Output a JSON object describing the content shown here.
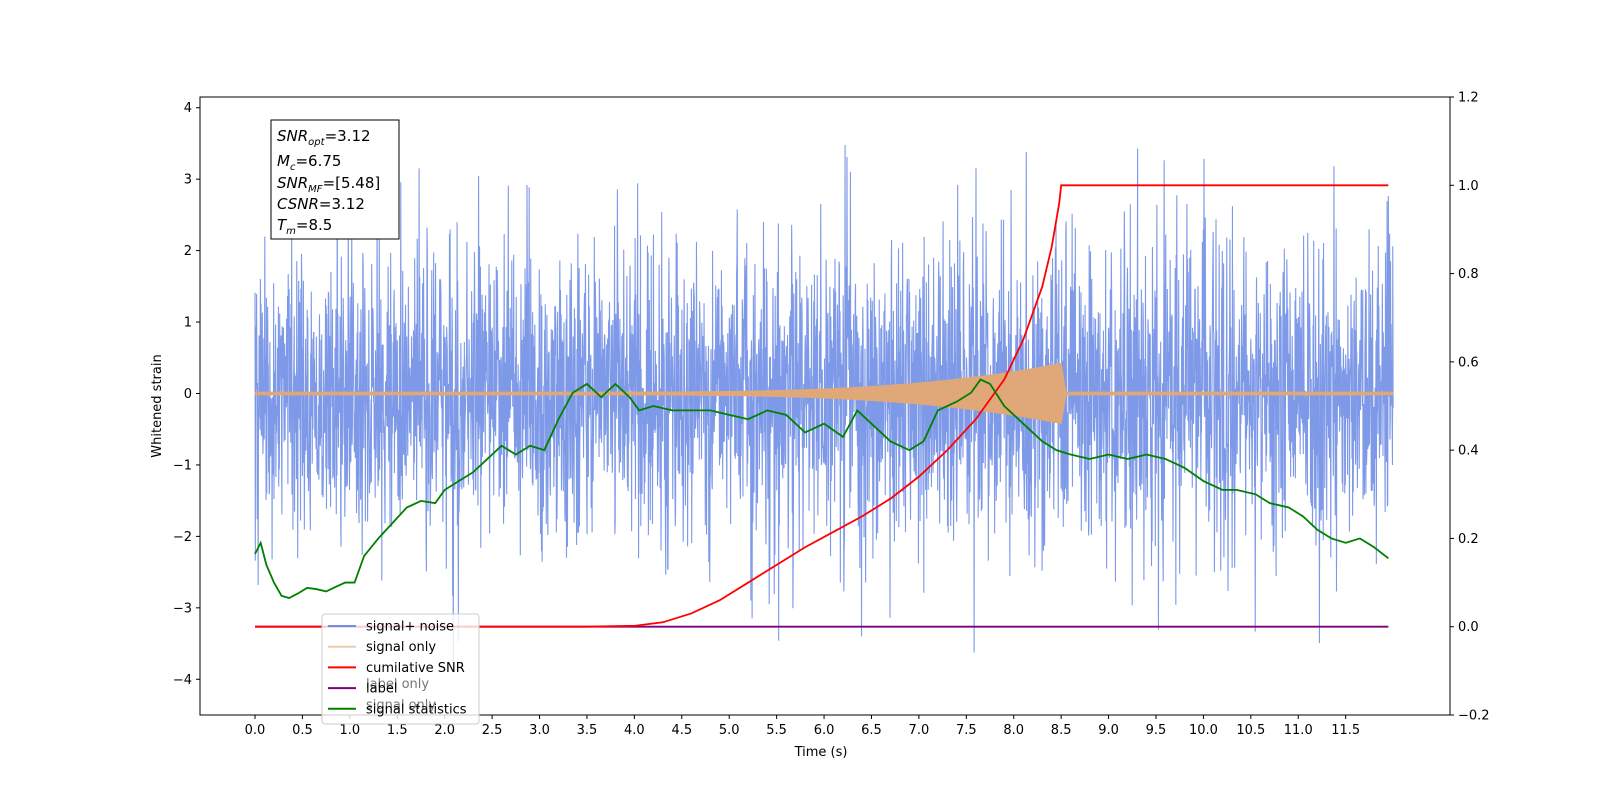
{
  "chart_data": {
    "type": "line",
    "xlabel": "Time (s)",
    "ylabel": "Whitened strain",
    "xlim": [
      -0.58,
      12.6
    ],
    "ylim": [
      -4.5,
      4.15
    ],
    "y2lim": [
      -0.2,
      1.2
    ],
    "x_ticks": [
      "0.0",
      "0.5",
      "1.0",
      "1.5",
      "2.0",
      "2.5",
      "3.0",
      "3.5",
      "4.0",
      "4.5",
      "5.0",
      "5.5",
      "6.0",
      "6.5",
      "7.0",
      "7.5",
      "8.0",
      "8.5",
      "9.0",
      "9.5",
      "10.0",
      "10.5",
      "11.0",
      "11.5"
    ],
    "y_ticks": [
      "4",
      "3",
      "2",
      "1",
      "0",
      "−1",
      "−2",
      "−3",
      "−4"
    ],
    "y2_ticks": [
      "1.2",
      "1.0",
      "0.8",
      "0.6",
      "0.4",
      "0.2",
      "0.0",
      "−0.2"
    ],
    "colors": {
      "signal_noise": "#6f8ee6",
      "signal_only": "#e0a878",
      "cumulative_snr": "#ff0000",
      "label": "#7b007b",
      "signal_statistics": "#008000"
    },
    "info_box": [
      {
        "main": "SNR",
        "sub": "opt",
        "value": "=3.12"
      },
      {
        "main": "M",
        "sub": "c",
        "value": "=6.75"
      },
      {
        "main": "SNR",
        "sub": "MF",
        "value": "=[5.48]"
      },
      {
        "main": "CSNR",
        "sub": "",
        "value": "=3.12"
      },
      {
        "main": "T",
        "sub": "m",
        "value": "=8.5"
      }
    ],
    "legend": {
      "placement": "lower-left",
      "entries": [
        "signal+ noise",
        "signal only",
        "cumilative SNR",
        "label",
        "signal statistics"
      ],
      "ghost_entries": [
        "label only",
        "signal only"
      ]
    },
    "series": [
      {
        "name": "cumilative SNR",
        "axis": "right",
        "points": [
          [
            0,
            0
          ],
          [
            3.5,
            0
          ],
          [
            4.0,
            0.002
          ],
          [
            4.3,
            0.01
          ],
          [
            4.6,
            0.03
          ],
          [
            4.9,
            0.06
          ],
          [
            5.2,
            0.1
          ],
          [
            5.5,
            0.14
          ],
          [
            5.8,
            0.18
          ],
          [
            6.1,
            0.215
          ],
          [
            6.4,
            0.25
          ],
          [
            6.7,
            0.29
          ],
          [
            7.0,
            0.34
          ],
          [
            7.3,
            0.4
          ],
          [
            7.6,
            0.47
          ],
          [
            7.9,
            0.56
          ],
          [
            8.1,
            0.65
          ],
          [
            8.3,
            0.77
          ],
          [
            8.4,
            0.86
          ],
          [
            8.48,
            0.96
          ],
          [
            8.5,
            1.0
          ],
          [
            11.95,
            1.0
          ]
        ]
      },
      {
        "name": "label",
        "axis": "right",
        "points": [
          [
            0,
            0
          ],
          [
            11.95,
            0
          ]
        ]
      },
      {
        "name": "signal statistics",
        "axis": "right",
        "points": [
          [
            0,
            0.165
          ],
          [
            0.06,
            0.19
          ],
          [
            0.12,
            0.14
          ],
          [
            0.2,
            0.1
          ],
          [
            0.28,
            0.07
          ],
          [
            0.36,
            0.065
          ],
          [
            0.45,
            0.075
          ],
          [
            0.55,
            0.088
          ],
          [
            0.65,
            0.085
          ],
          [
            0.75,
            0.08
          ],
          [
            0.85,
            0.09
          ],
          [
            0.95,
            0.1
          ],
          [
            1.05,
            0.1
          ],
          [
            1.15,
            0.16
          ],
          [
            1.3,
            0.2
          ],
          [
            1.45,
            0.235
          ],
          [
            1.6,
            0.27
          ],
          [
            1.75,
            0.285
          ],
          [
            1.9,
            0.28
          ],
          [
            2.0,
            0.31
          ],
          [
            2.15,
            0.33
          ],
          [
            2.3,
            0.35
          ],
          [
            2.45,
            0.38
          ],
          [
            2.6,
            0.41
          ],
          [
            2.75,
            0.39
          ],
          [
            2.9,
            0.41
          ],
          [
            3.05,
            0.4
          ],
          [
            3.2,
            0.47
          ],
          [
            3.35,
            0.53
          ],
          [
            3.5,
            0.55
          ],
          [
            3.65,
            0.52
          ],
          [
            3.8,
            0.55
          ],
          [
            3.95,
            0.52
          ],
          [
            4.05,
            0.49
          ],
          [
            4.2,
            0.5
          ],
          [
            4.4,
            0.49
          ],
          [
            4.6,
            0.49
          ],
          [
            4.8,
            0.49
          ],
          [
            5.0,
            0.48
          ],
          [
            5.2,
            0.47
          ],
          [
            5.4,
            0.49
          ],
          [
            5.6,
            0.48
          ],
          [
            5.8,
            0.44
          ],
          [
            6.0,
            0.46
          ],
          [
            6.2,
            0.43
          ],
          [
            6.35,
            0.49
          ],
          [
            6.5,
            0.46
          ],
          [
            6.7,
            0.42
          ],
          [
            6.9,
            0.4
          ],
          [
            7.05,
            0.42
          ],
          [
            7.2,
            0.49
          ],
          [
            7.4,
            0.51
          ],
          [
            7.55,
            0.53
          ],
          [
            7.65,
            0.56
          ],
          [
            7.75,
            0.55
          ],
          [
            7.9,
            0.5
          ],
          [
            8.1,
            0.46
          ],
          [
            8.3,
            0.42
          ],
          [
            8.45,
            0.4
          ],
          [
            8.6,
            0.39
          ],
          [
            8.8,
            0.38
          ],
          [
            9.0,
            0.39
          ],
          [
            9.2,
            0.38
          ],
          [
            9.4,
            0.39
          ],
          [
            9.6,
            0.38
          ],
          [
            9.8,
            0.36
          ],
          [
            10.0,
            0.33
          ],
          [
            10.2,
            0.31
          ],
          [
            10.35,
            0.31
          ],
          [
            10.55,
            0.3
          ],
          [
            10.7,
            0.28
          ],
          [
            10.9,
            0.27
          ],
          [
            11.05,
            0.25
          ],
          [
            11.2,
            0.22
          ],
          [
            11.35,
            0.2
          ],
          [
            11.5,
            0.19
          ],
          [
            11.65,
            0.2
          ],
          [
            11.8,
            0.18
          ],
          [
            11.95,
            0.155
          ]
        ]
      }
    ]
  }
}
